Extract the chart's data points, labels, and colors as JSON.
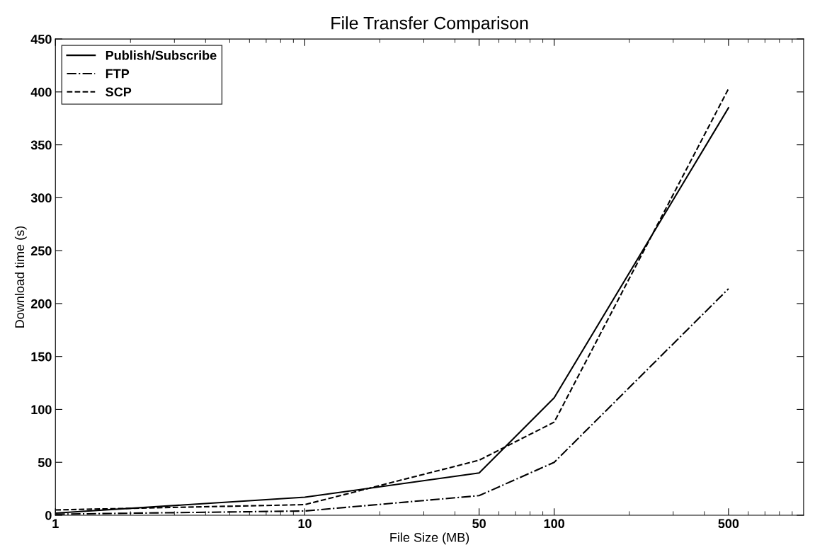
{
  "chart_data": {
    "type": "line",
    "title": "File Transfer Comparison",
    "xlabel": "File Size (MB)",
    "ylabel": "Download time (s)",
    "x": [
      1,
      10,
      50,
      100,
      500
    ],
    "log": "x",
    "xlim": [
      1,
      1000
    ],
    "xticks": [
      1,
      10,
      50,
      100,
      500
    ],
    "ylim": [
      0,
      450
    ],
    "yticks": [
      0,
      50,
      100,
      150,
      200,
      250,
      300,
      350,
      400,
      450
    ],
    "series": [
      {
        "name": "Publish/Subscribe",
        "color": "#000000",
        "line_style": "solid",
        "values": [
          2,
          17,
          40,
          111,
          385
        ]
      },
      {
        "name": "FTP",
        "color": "#000000",
        "line_style": "dashdot",
        "values": [
          1,
          4,
          18.5,
          50,
          214
        ]
      },
      {
        "name": "SCP",
        "color": "#000000",
        "line_style": "dashed",
        "values": [
          5,
          10,
          52,
          88,
          403
        ]
      }
    ],
    "legend": "top left",
    "grid": false,
    "marker": "none"
  }
}
